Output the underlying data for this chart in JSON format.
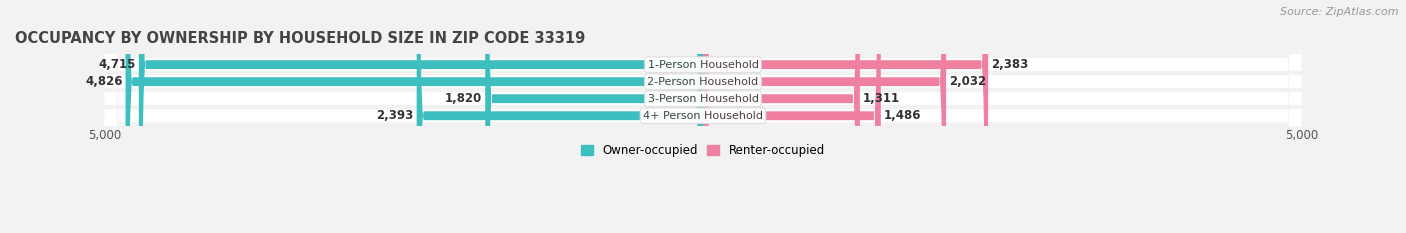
{
  "title": "OCCUPANCY BY OWNERSHIP BY HOUSEHOLD SIZE IN ZIP CODE 33319",
  "source": "Source: ZipAtlas.com",
  "categories": [
    "1-Person Household",
    "2-Person Household",
    "3-Person Household",
    "4+ Person Household"
  ],
  "owner_values": [
    4715,
    4826,
    1820,
    2393
  ],
  "renter_values": [
    2383,
    2032,
    1311,
    1486
  ],
  "owner_color": "#3DBFBF",
  "renter_color": "#F080A0",
  "bg_color": "#F2F2F2",
  "row_bg_color": "#E8E8EE",
  "xlim": 5000,
  "title_fontsize": 10.5,
  "source_fontsize": 8,
  "label_fontsize": 8.5,
  "tick_fontsize": 8.5,
  "legend_fontsize": 8.5,
  "figsize": [
    14.06,
    2.33
  ],
  "dpi": 100
}
